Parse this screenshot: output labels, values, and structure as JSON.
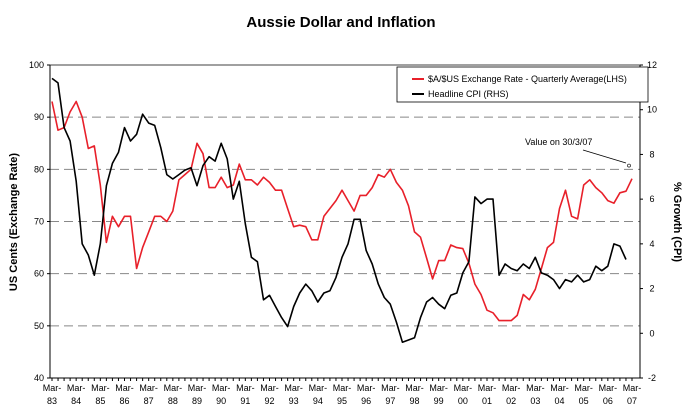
{
  "chart_data": {
    "type": "line",
    "title": "Aussie Dollar and Inflation",
    "ylabel": "US Cents (Exchange Rate)",
    "y2label": "% Growth (CPI)",
    "ylim": [
      40,
      100
    ],
    "y2lim": [
      -2,
      12
    ],
    "yticks": [
      "100",
      "90",
      "80",
      "70",
      "60",
      "50",
      "40"
    ],
    "y2ticks": [
      "12",
      "10",
      "8",
      "6",
      "4",
      "2",
      "0",
      "-2"
    ],
    "x_tick_labels": [
      [
        "Mar-",
        "83"
      ],
      [
        "Mar-",
        "84"
      ],
      [
        "Mar-",
        "85"
      ],
      [
        "Mar-",
        "86"
      ],
      [
        "Mar-",
        "87"
      ],
      [
        "Mar-",
        "88"
      ],
      [
        "Mar-",
        "89"
      ],
      [
        "Mar-",
        "90"
      ],
      [
        "Mar-",
        "91"
      ],
      [
        "Mar-",
        "92"
      ],
      [
        "Mar-",
        "93"
      ],
      [
        "Mar-",
        "94"
      ],
      [
        "Mar-",
        "95"
      ],
      [
        "Mar-",
        "96"
      ],
      [
        "Mar-",
        "97"
      ],
      [
        "Mar-",
        "98"
      ],
      [
        "Mar-",
        "99"
      ],
      [
        "Mar-",
        "00"
      ],
      [
        "Mar-",
        "01"
      ],
      [
        "Mar-",
        "02"
      ],
      [
        "Mar-",
        "03"
      ],
      [
        "Mar-",
        "04"
      ],
      [
        "Mar-",
        "05"
      ],
      [
        "Mar-",
        "06"
      ],
      [
        "Mar-",
        "07"
      ]
    ],
    "x_range": [
      "Mar-83",
      "Mar-07"
    ],
    "x_frequency": "quarterly",
    "grid": "horizontal dashed",
    "legend_position": "top-right",
    "series": [
      {
        "name": "$A/$US Exchange Rate - Quarterly Average(LHS)",
        "axis": "left",
        "color": "#e8202a",
        "values": [
          93,
          87.5,
          88,
          91,
          93,
          90,
          84,
          84.5,
          77,
          66,
          71,
          69,
          71,
          71,
          61,
          65,
          68,
          71,
          71,
          70,
          72,
          78,
          79,
          80,
          85,
          83,
          76.5,
          76.5,
          78.5,
          76.5,
          77,
          81,
          78,
          78,
          77,
          78.5,
          77.5,
          76,
          76,
          72.5,
          69,
          69.3,
          69,
          66.5,
          66.5,
          71,
          72.5,
          74,
          76,
          74,
          72,
          75,
          75,
          76.5,
          79,
          78.5,
          80,
          77.5,
          76,
          73,
          68,
          67,
          63,
          59,
          62.5,
          62.5,
          65.5,
          65,
          64.8,
          62,
          58,
          56,
          53,
          52.5,
          51,
          51,
          51,
          52,
          56,
          55,
          57,
          61,
          65,
          66,
          72.5,
          76,
          71,
          70.5,
          77,
          78,
          76.5,
          75.5,
          74,
          73.5,
          75.5,
          75.8,
          78.2
        ]
      },
      {
        "name": "Headline CPI (RHS)",
        "axis": "right",
        "color": "#000000",
        "values": [
          11.4,
          11.2,
          9.2,
          8.6,
          6.8,
          4.0,
          3.5,
          2.6,
          4.0,
          6.6,
          7.6,
          8.1,
          9.2,
          8.6,
          8.9,
          9.8,
          9.4,
          9.3,
          8.3,
          7.1,
          6.9,
          7.1,
          7.3,
          7.4,
          6.6,
          7.5,
          7.9,
          7.7,
          8.5,
          7.8,
          6.0,
          6.8,
          4.9,
          3.4,
          3.2,
          1.5,
          1.7,
          1.2,
          0.7,
          0.3,
          1.2,
          1.8,
          2.2,
          1.9,
          1.4,
          1.8,
          1.9,
          2.5,
          3.4,
          4.0,
          5.1,
          5.1,
          3.7,
          3.1,
          2.2,
          1.6,
          1.3,
          0.5,
          -0.4,
          -0.3,
          -0.2,
          0.7,
          1.4,
          1.6,
          1.3,
          1.1,
          1.7,
          1.8,
          2.7,
          3.2,
          6.1,
          5.8,
          6.0,
          6.0,
          2.6,
          3.1,
          2.9,
          2.8,
          3.1,
          2.9,
          3.4,
          2.7,
          2.6,
          2.4,
          2.0,
          2.4,
          2.3,
          2.6,
          2.3,
          2.4,
          3.0,
          2.8,
          3.0,
          4.0,
          3.9,
          3.3
        ]
      }
    ],
    "annotation": {
      "text": "Value on 30/3/07",
      "axis": "right",
      "value": 7.5,
      "at": "Mar-07"
    }
  }
}
